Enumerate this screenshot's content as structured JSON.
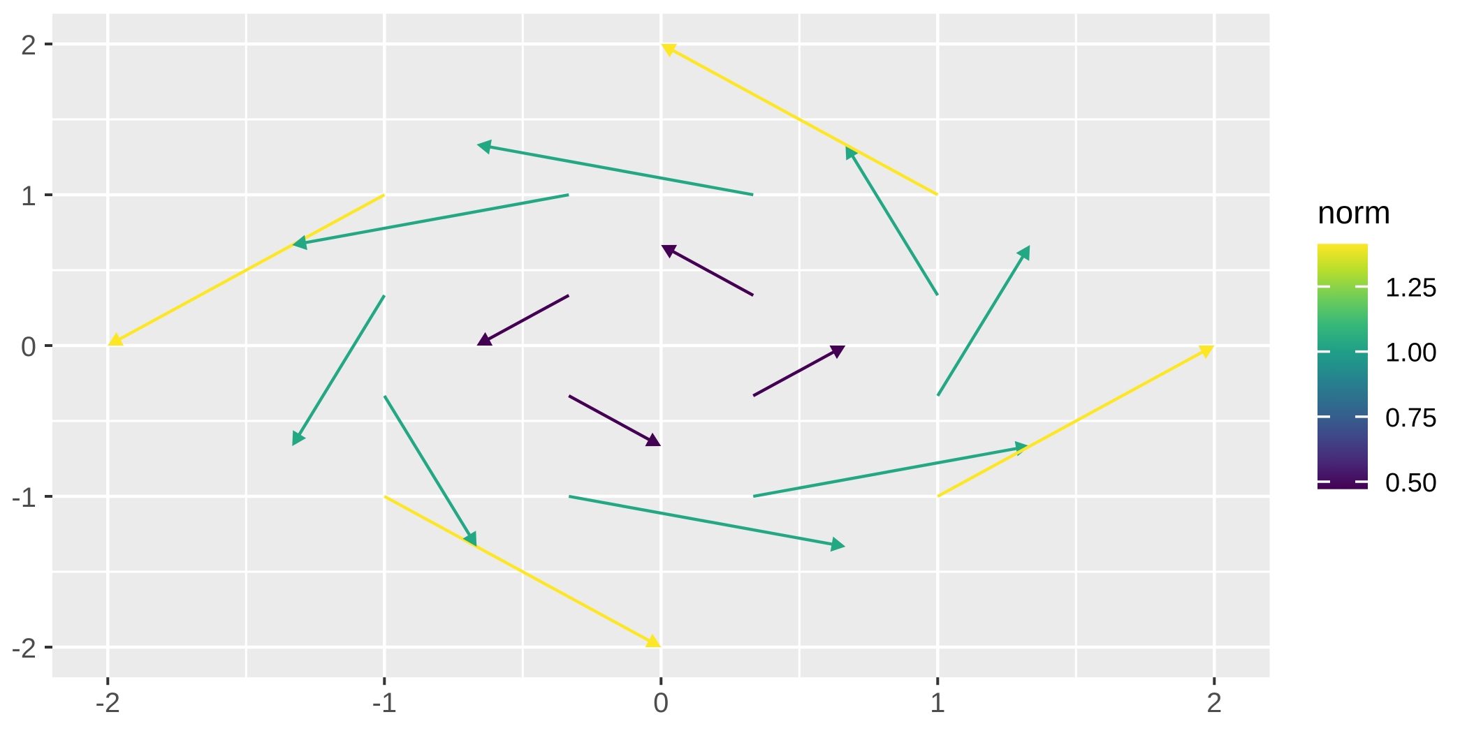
{
  "colors": {
    "background": "#FFFFFF",
    "panel_background": "#EBEBEB",
    "grid": "#FFFFFF",
    "axis_text": "#4D4D4D",
    "tick_mark": "#333333",
    "legend_text": "#000000",
    "norm_low": "#440154",
    "norm_mid": "#23A884",
    "norm_high": "#FDE725"
  },
  "chart_data": {
    "type": "vector_field",
    "title": "",
    "xlabel": "",
    "ylabel": "",
    "xlim": [
      -2.2,
      2.2
    ],
    "ylim": [
      -2.2,
      2.2
    ],
    "x_tick_values": [
      -2,
      -1,
      0,
      1,
      2
    ],
    "x_tick_labels": [
      "-2",
      "-1",
      "0",
      "1",
      "2"
    ],
    "y_tick_values": [
      2,
      1,
      0,
      -1,
      -2
    ],
    "y_tick_labels": [
      "2",
      "1",
      "0",
      "-1",
      "-2"
    ],
    "minor_gridlines": [
      -1.5,
      -0.5,
      0.5,
      1.5
    ],
    "grid_on": true,
    "arrows": [
      {
        "x": -1,
        "y": -1,
        "dx": 1,
        "dy": -1,
        "norm": 1.4142,
        "color": "#FDE725"
      },
      {
        "x": -1,
        "y": -0.3333,
        "dx": 0.3333,
        "dy": -1,
        "norm": 1.0541,
        "color": "#23A884"
      },
      {
        "x": -1,
        "y": 0.3333,
        "dx": -0.3333,
        "dy": -1,
        "norm": 1.0541,
        "color": "#23A884"
      },
      {
        "x": -1,
        "y": 1,
        "dx": -1,
        "dy": -1,
        "norm": 1.4142,
        "color": "#FDE725"
      },
      {
        "x": -0.3333,
        "y": -1,
        "dx": 1,
        "dy": -0.3333,
        "norm": 1.0541,
        "color": "#23A884"
      },
      {
        "x": -0.3333,
        "y": -0.3333,
        "dx": 0.3333,
        "dy": -0.3333,
        "norm": 0.4714,
        "color": "#440154"
      },
      {
        "x": -0.3333,
        "y": 0.3333,
        "dx": -0.3333,
        "dy": -0.3333,
        "norm": 0.4714,
        "color": "#440154"
      },
      {
        "x": -0.3333,
        "y": 1,
        "dx": -1,
        "dy": -0.3333,
        "norm": 1.0541,
        "color": "#23A884"
      },
      {
        "x": 0.3333,
        "y": -1,
        "dx": 1,
        "dy": 0.3333,
        "norm": 1.0541,
        "color": "#23A884"
      },
      {
        "x": 0.3333,
        "y": -0.3333,
        "dx": 0.3333,
        "dy": 0.3333,
        "norm": 0.4714,
        "color": "#440154"
      },
      {
        "x": 0.3333,
        "y": 0.3333,
        "dx": -0.3333,
        "dy": 0.3333,
        "norm": 0.4714,
        "color": "#440154"
      },
      {
        "x": 0.3333,
        "y": 1,
        "dx": -1,
        "dy": 0.3333,
        "norm": 1.0541,
        "color": "#23A884"
      },
      {
        "x": 1,
        "y": -1,
        "dx": 1,
        "dy": 1,
        "norm": 1.4142,
        "color": "#FDE725"
      },
      {
        "x": 1,
        "y": -0.3333,
        "dx": 0.3333,
        "dy": 1,
        "norm": 1.0541,
        "color": "#23A884"
      },
      {
        "x": 1,
        "y": 0.3333,
        "dx": -0.3333,
        "dy": 1,
        "norm": 1.0541,
        "color": "#23A884"
      },
      {
        "x": 1,
        "y": 1,
        "dx": -1,
        "dy": 1,
        "norm": 1.4142,
        "color": "#FDE725"
      }
    ],
    "legend": {
      "title": "norm",
      "position": "right",
      "range": [
        0.4714,
        1.4142
      ],
      "tick_values": [
        1.25,
        1.0,
        0.75,
        0.5
      ],
      "tick_labels": [
        "1.25",
        "1.00",
        "0.75",
        "0.50"
      ],
      "gradient_bottom_to_top": [
        "#440154",
        "#482878",
        "#3E4A89",
        "#31688E",
        "#26828E",
        "#1F9E89",
        "#35B779",
        "#6DCD59",
        "#B4DE2C",
        "#FDE725"
      ]
    }
  }
}
